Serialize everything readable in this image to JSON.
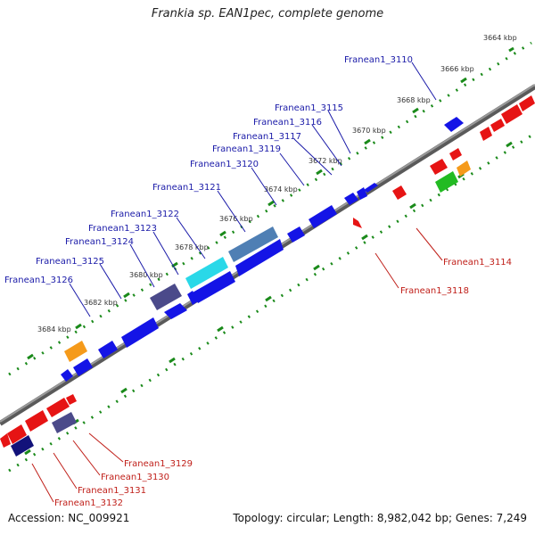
{
  "header": {
    "title": "Frankia sp. EAN1pec, complete genome"
  },
  "footer": {
    "accession": "Accession: NC_009921",
    "info": "Topology: circular; Length: 8,982,042 bp; Genes: 7,249"
  },
  "ruler": {
    "labels": [
      "3664 kbp",
      "3666 kbp",
      "3668 kbp",
      "3670 kbp",
      "3672 kbp",
      "3674 kbp",
      "3676 kbp",
      "3678 kbp",
      "3680 kbp",
      "3682 kbp",
      "3684 kbp"
    ]
  },
  "genes_top": [
    "Franean1_3110",
    "Franean1_3115",
    "Franean1_3116",
    "Franean1_3117",
    "Franean1_3119",
    "Franean1_3120",
    "Franean1_3121",
    "Franean1_3122",
    "Franean1_3123",
    "Franean1_3124",
    "Franean1_3125",
    "Franean1_3126"
  ],
  "genes_bottom": [
    "Franean1_3114",
    "Franean1_3118",
    "Franean1_3129",
    "Franean1_3130",
    "Franean1_3131",
    "Franean1_3132"
  ],
  "colors": {
    "backbone": "#7a7a7a",
    "tick": "#1a8a1a",
    "gene_blue": "#1414e6",
    "gene_red": "#e61414",
    "gene_cyan": "#2ad8e8",
    "gene_steel": "#4f7fb4",
    "gene_slate": "#4b4a8a",
    "gene_navy": "#12127a",
    "gene_orange": "#f59a1a",
    "gene_green": "#22bb22",
    "label_top": "#1a1aa8",
    "label_bottom": "#c0201a"
  }
}
